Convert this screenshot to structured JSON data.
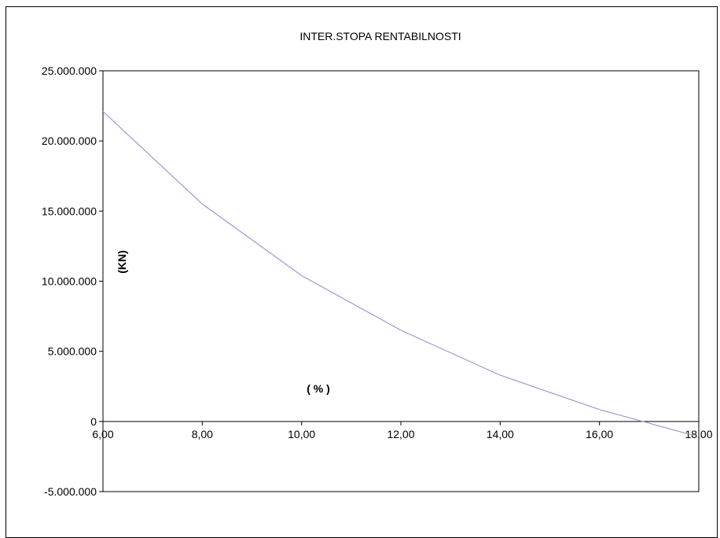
{
  "chart_data": {
    "type": "line",
    "title": "INTER.STOPA RENTABILNOSTI",
    "xlabel": "( % )",
    "ylabel": "(KN)",
    "x": [
      6,
      8,
      10,
      12,
      14,
      16,
      17.9
    ],
    "x_tick_labels": [
      "6,00",
      "8,00",
      "10,00",
      "12,00",
      "14,00",
      "16,00",
      "18,00"
    ],
    "xlim": [
      6,
      18
    ],
    "ylim": [
      -5000000,
      25000000
    ],
    "y_ticks": [
      -5000000,
      0,
      5000000,
      10000000,
      15000000,
      20000000,
      25000000
    ],
    "y_tick_labels": [
      "-5.000.000",
      "0",
      "5.000.000",
      "10.000.000",
      "15.000.000",
      "20.000.000",
      "25.000.000"
    ],
    "series": [
      {
        "values": [
          22100000,
          15500000,
          10400000,
          6500000,
          3300000,
          850000,
          -1000000
        ],
        "color": "#9a9ad0"
      }
    ],
    "grid": false,
    "legend": "none"
  }
}
